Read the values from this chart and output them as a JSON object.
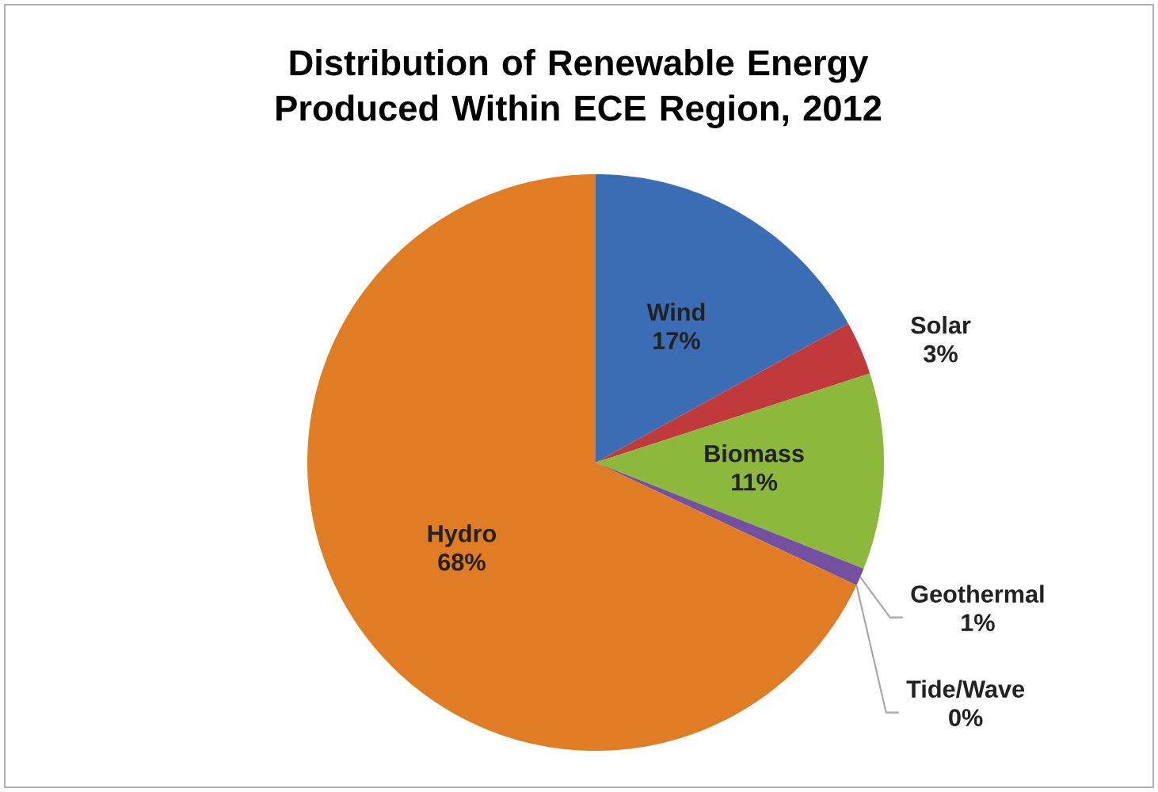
{
  "chart_data": {
    "type": "pie",
    "title": "Distribution of Renewable Energy Produced Within ECE Region, 2012",
    "categories": [
      "Wind",
      "Solar",
      "Biomass",
      "Geothermal",
      "Tide/Wave",
      "Hydro"
    ],
    "values": [
      17,
      3,
      11,
      1,
      0,
      68
    ],
    "colors": [
      "#3b6db4",
      "#c0393b",
      "#8cb83c",
      "#7450a0",
      "#4aa0c0",
      "#e07d24"
    ],
    "value_labels": [
      "17%",
      "3%",
      "11%",
      "1%",
      "0%",
      "68%"
    ]
  }
}
